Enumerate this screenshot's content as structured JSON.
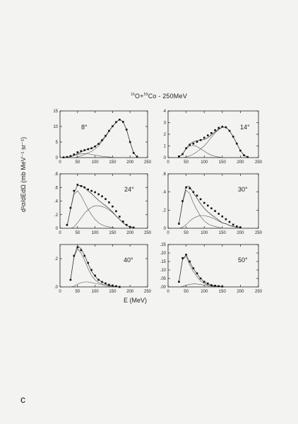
{
  "figure": {
    "title_parts": {
      "a_mass": "16",
      "a_sym": "O+",
      "b_mass": "59",
      "b_sym": "Co",
      "energy": " - 250MeV"
    },
    "ylabel": "d²σ/dEdΩ (mb MeV⁻¹ sr⁻¹)",
    "xlabel": "E (MeV)",
    "corner_letter": "c"
  },
  "chart_data": [
    {
      "type": "line",
      "angle_label": "8°",
      "xlim": [
        0,
        250
      ],
      "ylim": [
        0,
        15
      ],
      "xticks": [
        "0",
        "50",
        "100",
        "150",
        "200",
        "250"
      ],
      "yticks": [
        "0",
        "5",
        "10",
        "15"
      ],
      "x": [
        10,
        20,
        30,
        40,
        50,
        60,
        70,
        80,
        90,
        100,
        110,
        120,
        130,
        140,
        150,
        160,
        170,
        180,
        190,
        200,
        210,
        220
      ],
      "data": [
        0.1,
        0.2,
        0.5,
        1.0,
        1.7,
        2.1,
        2.4,
        2.7,
        3.0,
        3.6,
        4.4,
        5.6,
        7.0,
        8.6,
        10.1,
        11.4,
        12.2,
        11.5,
        9.0,
        5.0,
        1.5,
        0.3
      ],
      "components": [
        [
          0.05,
          0.1,
          0.3,
          0.7,
          1.0,
          1.2,
          1.3,
          1.2,
          1.0,
          0.8,
          0.6,
          0.4,
          0.3,
          0.2,
          0.1,
          0.05,
          0.02,
          0,
          0,
          0,
          0,
          0
        ],
        [
          0,
          0,
          0,
          0,
          0.2,
          0.6,
          1.0,
          1.5,
          2.0,
          2.8,
          3.8,
          5.2,
          6.7,
          8.4,
          10.0,
          11.3,
          12.3,
          11.5,
          9.0,
          5.0,
          1.5,
          0.3
        ]
      ]
    },
    {
      "type": "line",
      "angle_label": "14°",
      "xlim": [
        0,
        250
      ],
      "ylim": [
        0,
        4
      ],
      "xticks": [
        "0",
        "50",
        "100",
        "150",
        "200",
        "250"
      ],
      "yticks": [
        "0",
        "1",
        "2",
        "3",
        "4"
      ],
      "x": [
        30,
        40,
        50,
        60,
        70,
        80,
        90,
        100,
        110,
        120,
        130,
        140,
        150,
        160,
        170,
        180,
        190,
        200,
        210,
        220
      ],
      "data": [
        0.1,
        0.3,
        0.8,
        1.1,
        1.2,
        1.35,
        1.5,
        1.7,
        1.9,
        2.1,
        2.35,
        2.55,
        2.65,
        2.6,
        2.3,
        1.8,
        1.2,
        0.6,
        0.2,
        0.05
      ],
      "components": [
        [
          0.05,
          0.3,
          0.75,
          1.0,
          1.05,
          0.95,
          0.75,
          0.55,
          0.35,
          0.2,
          0.1,
          0.05,
          0.02,
          0,
          0,
          0,
          0,
          0,
          0,
          0
        ],
        [
          0,
          0,
          0.05,
          0.15,
          0.3,
          0.5,
          0.75,
          1.0,
          1.35,
          1.75,
          2.1,
          2.4,
          2.6,
          2.6,
          2.3,
          1.8,
          1.2,
          0.6,
          0.2,
          0.05
        ]
      ]
    },
    {
      "type": "line",
      "angle_label": "24°",
      "xlim": [
        0,
        250
      ],
      "ylim": [
        0,
        0.8
      ],
      "xticks": [
        "0",
        "50",
        "100",
        "150",
        "200",
        "250"
      ],
      "yticks": [
        "0",
        ".2",
        ".4",
        ".6",
        ".8"
      ],
      "x": [
        20,
        30,
        40,
        50,
        60,
        70,
        80,
        90,
        100,
        110,
        120,
        130,
        140,
        150,
        160,
        170,
        180,
        190,
        200,
        210
      ],
      "data": [
        0.05,
        0.3,
        0.55,
        0.64,
        0.62,
        0.6,
        0.57,
        0.55,
        0.53,
        0.5,
        0.47,
        0.43,
        0.38,
        0.32,
        0.25,
        0.17,
        0.1,
        0.05,
        0.02,
        0.01
      ],
      "components": [
        [
          0.03,
          0.28,
          0.5,
          0.55,
          0.48,
          0.38,
          0.28,
          0.2,
          0.13,
          0.08,
          0.05,
          0.03,
          0.02,
          0.01,
          0,
          0,
          0,
          0,
          0,
          0
        ],
        [
          0,
          0,
          0.02,
          0.08,
          0.15,
          0.22,
          0.27,
          0.31,
          0.33,
          0.33,
          0.32,
          0.3,
          0.27,
          0.23,
          0.18,
          0.13,
          0.08,
          0.04,
          0.02,
          0.01
        ]
      ]
    },
    {
      "type": "line",
      "angle_label": "30°",
      "xlim": [
        0,
        250
      ],
      "ylim": [
        0,
        0.6
      ],
      "xticks": [
        "0",
        "50",
        "100",
        "150",
        "200",
        "250"
      ],
      "yticks": [
        "0",
        ".2",
        ".4",
        ".6"
      ],
      "x": [
        30,
        40,
        50,
        60,
        70,
        80,
        90,
        100,
        110,
        120,
        130,
        140,
        150,
        160,
        170,
        180,
        190,
        200
      ],
      "data": [
        0.05,
        0.3,
        0.45,
        0.44,
        0.4,
        0.36,
        0.32,
        0.28,
        0.25,
        0.22,
        0.19,
        0.16,
        0.13,
        0.1,
        0.07,
        0.04,
        0.02,
        0.01
      ],
      "components": [
        [
          0.05,
          0.28,
          0.42,
          0.38,
          0.28,
          0.2,
          0.13,
          0.08,
          0.05,
          0.03,
          0.02,
          0.01,
          0,
          0,
          0,
          0,
          0,
          0
        ],
        [
          0,
          0.01,
          0.04,
          0.08,
          0.11,
          0.13,
          0.14,
          0.14,
          0.13,
          0.12,
          0.1,
          0.08,
          0.06,
          0.05,
          0.03,
          0.02,
          0.01,
          0.01
        ]
      ]
    },
    {
      "type": "line",
      "angle_label": "40°",
      "xlim": [
        0,
        250
      ],
      "ylim": [
        0,
        0.3
      ],
      "xticks": [
        "0",
        "50",
        "100",
        "150",
        "200",
        "250"
      ],
      "yticks": [
        ".0",
        ".2"
      ],
      "x": [
        30,
        40,
        50,
        60,
        70,
        80,
        90,
        100,
        110,
        120,
        130,
        140,
        150,
        160,
        170
      ],
      "data": [
        0.05,
        0.22,
        0.28,
        0.26,
        0.22,
        0.17,
        0.12,
        0.08,
        0.05,
        0.035,
        0.025,
        0.015,
        0.01,
        0.005,
        0
      ],
      "components": [
        [
          0.05,
          0.21,
          0.27,
          0.24,
          0.19,
          0.13,
          0.08,
          0.05,
          0.03,
          0.02,
          0.01,
          0.005,
          0,
          0,
          0
        ],
        [
          0,
          0.005,
          0.02,
          0.03,
          0.035,
          0.035,
          0.03,
          0.025,
          0.02,
          0.015,
          0.01,
          0.008,
          0.005,
          0.003,
          0
        ]
      ]
    },
    {
      "type": "line",
      "angle_label": "50°",
      "xlim": [
        0,
        250
      ],
      "ylim": [
        0,
        0.25
      ],
      "xticks": [
        "0",
        "50",
        "100",
        "150",
        "200",
        "250"
      ],
      "yticks": [
        ".00",
        ".05",
        ".10",
        ".15",
        ".20",
        ".25"
      ],
      "x": [
        30,
        40,
        50,
        60,
        70,
        80,
        90,
        100,
        110,
        120,
        130,
        140,
        150
      ],
      "data": [
        0.03,
        0.17,
        0.19,
        0.15,
        0.11,
        0.08,
        0.05,
        0.03,
        0.02,
        0.01,
        0.007,
        0.004,
        0.002
      ],
      "components": [
        [
          0.03,
          0.16,
          0.18,
          0.13,
          0.09,
          0.06,
          0.035,
          0.02,
          0.01,
          0.005,
          0.002,
          0.001,
          0
        ],
        [
          0,
          0.003,
          0.01,
          0.015,
          0.018,
          0.017,
          0.014,
          0.01,
          0.008,
          0.005,
          0.004,
          0.003,
          0.002
        ]
      ]
    }
  ]
}
